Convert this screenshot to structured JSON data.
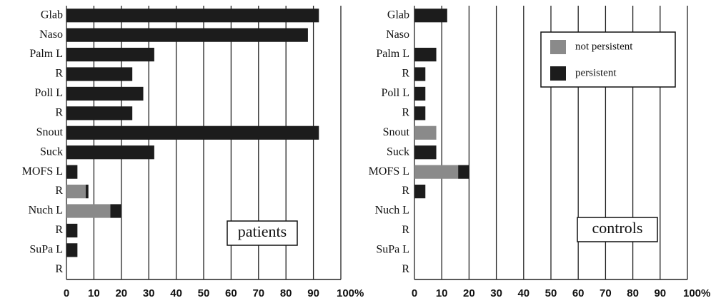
{
  "chart_data": [
    {
      "type": "bar",
      "orientation": "horizontal",
      "stacked": true,
      "categories": [
        "Glab",
        "Naso",
        "Palm L",
        "R",
        "Poll L",
        "R",
        "Snout",
        "Suck",
        "MOFS L",
        "R",
        "Nuch L",
        "R",
        "SuPa L",
        "R"
      ],
      "series": [
        {
          "color": "#8a8a8a",
          "values": [
            0,
            0,
            0,
            0,
            0,
            0,
            0,
            0,
            0,
            7,
            16,
            0,
            0,
            0
          ]
        },
        {
          "color": "#1c1c1c",
          "values": [
            92,
            88,
            32,
            24,
            28,
            24,
            92,
            32,
            4,
            1,
            4,
            4,
            4,
            0
          ]
        }
      ],
      "xlim": [
        0,
        100
      ],
      "xticks": [
        0,
        10,
        20,
        30,
        40,
        50,
        60,
        70,
        80,
        90,
        {
          "value": 100,
          "label": "100%"
        }
      ],
      "grid": true,
      "annotation": "patients"
    },
    {
      "type": "bar",
      "orientation": "horizontal",
      "stacked": true,
      "categories": [
        "Glab",
        "Naso",
        "Palm L",
        "R",
        "Poll L",
        "R",
        "Snout",
        "Suck",
        "MOFS L",
        "R",
        "Nuch L",
        "R",
        "SuPa L",
        "R"
      ],
      "series": [
        {
          "name": "not persistent",
          "color": "#8a8a8a",
          "values": [
            0,
            0,
            0,
            0,
            0,
            0,
            8,
            0,
            16,
            0,
            0,
            0,
            0,
            0
          ]
        },
        {
          "name": "persistent",
          "color": "#1c1c1c",
          "values": [
            12,
            0,
            8,
            4,
            4,
            4,
            0,
            8,
            4,
            4,
            0,
            0,
            0,
            0
          ]
        }
      ],
      "xlim": [
        0,
        100
      ],
      "xticks": [
        0,
        10,
        20,
        30,
        40,
        50,
        60,
        70,
        80,
        90,
        {
          "value": 100,
          "label": "100%"
        }
      ],
      "grid": true,
      "legend": "upper right",
      "annotation": "controls"
    }
  ]
}
